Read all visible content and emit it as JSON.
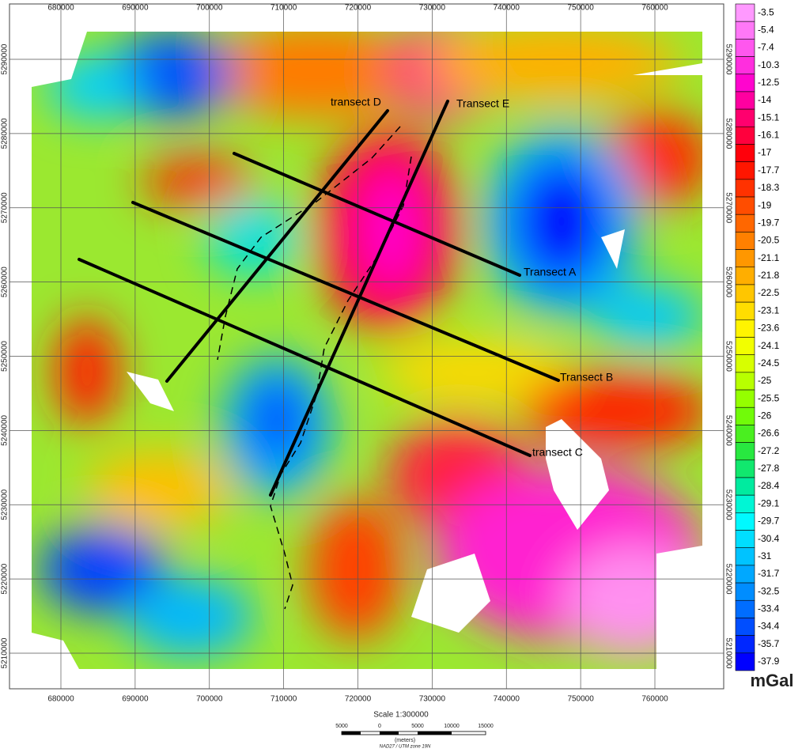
{
  "map": {
    "x_ticks": [
      680000,
      690000,
      700000,
      710000,
      720000,
      730000,
      740000,
      750000,
      760000
    ],
    "y_ticks": [
      5290000,
      5280000,
      5270000,
      5260000,
      5250000,
      5240000,
      5230000,
      5220000,
      5210000
    ],
    "transects": [
      {
        "label": "Transect A"
      },
      {
        "label": "Transect B"
      },
      {
        "label": "transect C"
      },
      {
        "label": "transect D"
      },
      {
        "label": "Transect E"
      }
    ],
    "colorbar": {
      "levels": [
        -3.5,
        -5.4,
        -7.4,
        -10.3,
        -12.5,
        -14.0,
        -15.1,
        -16.1,
        -17.0,
        -17.7,
        -18.3,
        -19.0,
        -19.7,
        -20.5,
        -21.1,
        -21.8,
        -22.5,
        -23.1,
        -23.6,
        -24.1,
        -24.5,
        -25.0,
        -25.5,
        -26.0,
        -26.6,
        -27.2,
        -27.8,
        -28.4,
        -29.1,
        -29.7,
        -30.4,
        -31.0,
        -31.7,
        -32.5,
        -33.4,
        -34.4,
        -35.7,
        -37.9
      ],
      "unit": "mGal"
    },
    "scale": {
      "title": "Scale 1:300000",
      "bar_labels": [
        "5000",
        "0",
        "5000",
        "10000",
        "15000"
      ],
      "units": "(meters)",
      "projection": "NAD27 / UTM zone 19N"
    }
  }
}
